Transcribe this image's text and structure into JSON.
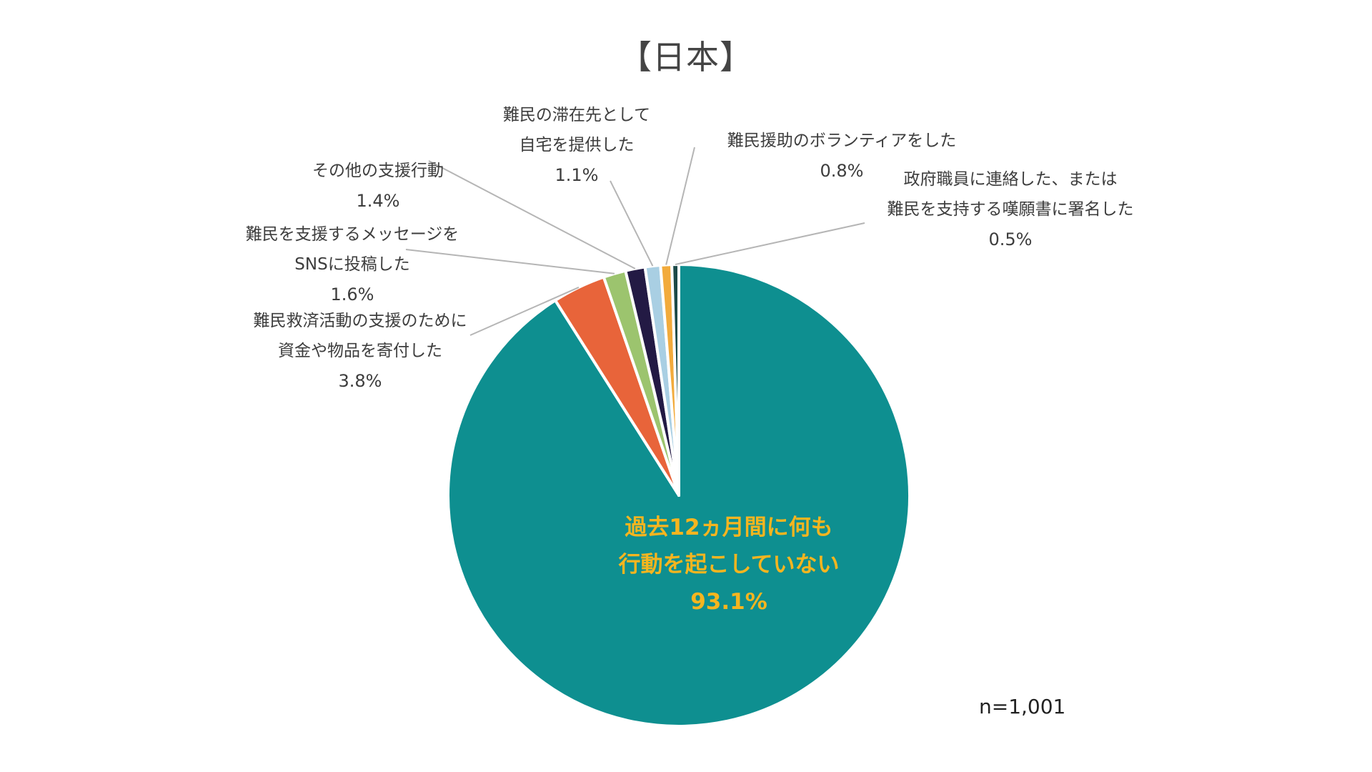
{
  "chart_data": {
    "type": "pie",
    "title": "【日本】",
    "slices": [
      {
        "label_lines": [
          "過去12ヵ月間に何も",
          "行動を起こしていない"
        ],
        "value": 93.1,
        "display": "93.1%",
        "color": "#0e8f90"
      },
      {
        "label_lines": [
          "難民救済活動の支援のために",
          "資金や物品を寄付した"
        ],
        "value": 3.8,
        "display": "3.8%",
        "color": "#e8643a"
      },
      {
        "label_lines": [
          "難民を支援するメッセージを",
          "SNSに投稿した"
        ],
        "value": 1.6,
        "display": "1.6%",
        "color": "#9cc46e"
      },
      {
        "label_lines": [
          "その他の支援行動"
        ],
        "value": 1.4,
        "display": "1.4%",
        "color": "#231a44"
      },
      {
        "label_lines": [
          "難民の滞在先として",
          "自宅を提供した"
        ],
        "value": 1.1,
        "display": "1.1%",
        "color": "#a9cfe3"
      },
      {
        "label_lines": [
          "難民援助のボランティアをした"
        ],
        "value": 0.8,
        "display": "0.8%",
        "color": "#f2ab3c"
      },
      {
        "label_lines": [
          "政府職員に連絡した、または",
          "難民を支持する嘆願書に署名した"
        ],
        "value": 0.5,
        "display": "0.5%",
        "color": "#1c4a48"
      }
    ],
    "main_label_color": "#f5b51f",
    "sample_size": "n=1,001"
  }
}
